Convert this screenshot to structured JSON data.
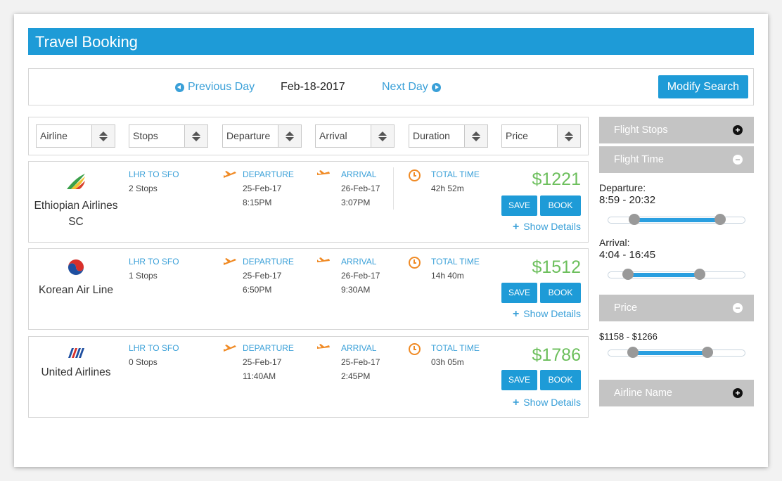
{
  "header": {
    "title": "Travel Booking"
  },
  "date_nav": {
    "prev_label": "Previous Day",
    "current_date": "Feb-18-2017",
    "next_label": "Next Day",
    "modify_label": "Modify Search"
  },
  "sort_options": [
    "Airline",
    "Stops",
    "Departure",
    "Arrival",
    "Duration",
    "Price"
  ],
  "flights": [
    {
      "airline": "Ethiopian Airlines  SC",
      "route": "LHR TO SFO",
      "stops": "2 Stops",
      "departure_label": "DEPARTURE",
      "dep_date": "25-Feb-17",
      "dep_time": "8:15PM",
      "arrival_label": "ARRIVAL",
      "arr_date": "26-Feb-17",
      "arr_time": "3:07PM",
      "total_label": "TOTAL TIME",
      "total_time": "42h 52m",
      "price": "$1221",
      "save": "SAVE",
      "book": "BOOK",
      "details": "Show Details"
    },
    {
      "airline": "Korean Air Line",
      "route": "LHR TO SFO",
      "stops": "1 Stops",
      "departure_label": "DEPARTURE",
      "dep_date": "25-Feb-17",
      "dep_time": "6:50PM",
      "arrival_label": "ARRIVAL",
      "arr_date": "26-Feb-17",
      "arr_time": "9:30AM",
      "total_label": "TOTAL TIME",
      "total_time": "14h 40m",
      "price": "$1512",
      "save": "SAVE",
      "book": "BOOK",
      "details": "Show Details"
    },
    {
      "airline": "United Airlines",
      "route": "LHR TO SFO",
      "stops": "0 Stops",
      "departure_label": "DEPARTURE",
      "dep_date": "25-Feb-17",
      "dep_time": "11:40AM",
      "arrival_label": "ARRIVAL",
      "arr_date": "25-Feb-17",
      "arr_time": "2:45PM",
      "total_label": "TOTAL TIME",
      "total_time": "03h 05m",
      "price": "$1786",
      "save": "SAVE",
      "book": "BOOK",
      "details": "Show Details"
    }
  ],
  "sidebar": {
    "flight_stops": "Flight Stops",
    "flight_time": "Flight Time",
    "departure_label": "Departure:",
    "departure_range": "8:59 - 20:32",
    "departure_slider": {
      "low": 0.16,
      "high": 0.84
    },
    "arrival_label": "Arrival:",
    "arrival_range": "4:04 - 16:45",
    "arrival_slider": {
      "low": 0.11,
      "high": 0.68
    },
    "price": "Price",
    "price_range": "$1158 - $1266",
    "price_slider": {
      "low": 0.15,
      "high": 0.74
    },
    "airline_name": "Airline Name"
  },
  "colors": {
    "brand": "#1e9bd7",
    "price": "#6cbf5c",
    "accent": "#f08a24",
    "panel": "#c4c4c4"
  }
}
